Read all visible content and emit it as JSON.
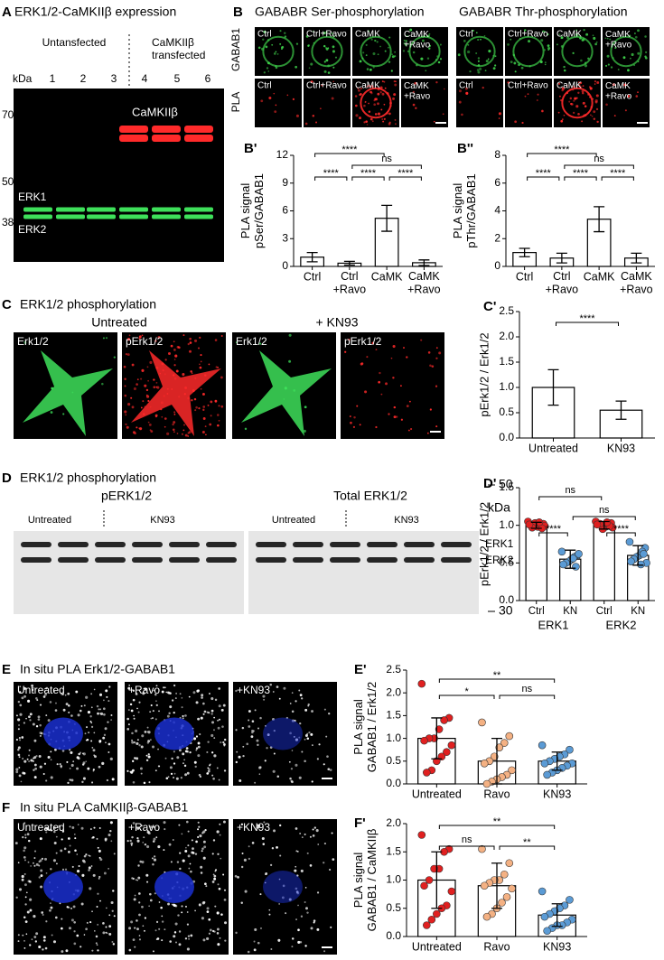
{
  "panels": {
    "A": {
      "letter": "A",
      "title": "ERK1/2-CaMKIIβ expression",
      "group1": "Untansfected",
      "group2": "CaMKIIβ\ntransfected",
      "kda": "kDa",
      "lanes": [
        "1",
        "2",
        "3",
        "4",
        "5",
        "6"
      ],
      "markers": [
        "70",
        "50",
        "38"
      ],
      "band_labels": [
        "CaMKIIβ",
        "ERK1",
        "ERK2"
      ]
    },
    "B": {
      "letter": "B",
      "title_ser": "GABABR Ser-phosphorylation",
      "title_thr": "GABABR Thr-phosphorylation",
      "row_labels": [
        "GABAB1",
        "PLA"
      ],
      "tiles": [
        "Ctrl",
        "Ctrl+Ravo",
        "CaMK",
        "CaMK\n+Ravo"
      ]
    },
    "C": {
      "letter": "C",
      "title": "ERK1/2 phosphorylation",
      "untreated": "Untreated",
      "kn93": "+ KN93",
      "tiles": [
        "Erk1/2",
        "pErk1/2"
      ]
    },
    "D": {
      "letter": "D",
      "title": "ERK1/2 phosphorylation",
      "blot_left": "pERK1/2",
      "blot_right": "Total ERK1/2",
      "untreated": "Untreated",
      "kn93": "KN93",
      "kda": "kDa",
      "markers": [
        "50",
        "30"
      ],
      "band_labels": [
        "ERK1",
        "ERK2"
      ]
    },
    "E": {
      "letter": "E",
      "title": "In situ PLA Erk1/2-GABAB1",
      "tiles": [
        "Untreated",
        "+Ravo",
        "+KN93"
      ]
    },
    "F": {
      "letter": "F",
      "title": "In situ PLA CaMKIIβ-GABAB1",
      "tiles": [
        "Untreated",
        "+Ravo",
        "+KN93"
      ]
    }
  },
  "chart_data": [
    {
      "type": "bar",
      "panel": "B'",
      "ylabel": "PLA signal\npSer/GABAB1",
      "categories": [
        "Ctrl",
        "Ctrl\n+Ravo",
        "CaMK",
        "CaMK\n+Ravo"
      ],
      "values": [
        1.0,
        0.35,
        5.2,
        0.4
      ],
      "errors": [
        0.5,
        0.2,
        1.4,
        0.3
      ],
      "point_colors": [
        "#7f7f7f",
        "#f4b183",
        "#e03030",
        "#5b9bd5"
      ],
      "ylim": [
        0,
        12
      ],
      "yticks": [
        0,
        3,
        6,
        9,
        12
      ],
      "brackets": [
        "****",
        "ns",
        "****",
        "****",
        "****"
      ]
    },
    {
      "type": "bar",
      "panel": "B''",
      "ylabel": "PLA signal\npThr/GABAB1",
      "categories": [
        "Ctrl",
        "Ctrl\n+Ravo",
        "CaMK",
        "CaMK\n+Ravo"
      ],
      "values": [
        1.0,
        0.6,
        3.4,
        0.6
      ],
      "errors": [
        0.3,
        0.35,
        0.9,
        0.35
      ],
      "point_colors": [
        "#7f7f7f",
        "#f4b183",
        "#e03030",
        "#5b9bd5"
      ],
      "ylim": [
        0,
        8
      ],
      "yticks": [
        0,
        2,
        4,
        6,
        8
      ],
      "brackets": [
        "****",
        "ns",
        "****",
        "****",
        "****"
      ]
    },
    {
      "type": "bar",
      "panel": "C'",
      "ylabel": "pErk1/2 / Erk1/2",
      "categories": [
        "Untreated",
        "KN93"
      ],
      "values": [
        1.0,
        0.55
      ],
      "errors": [
        0.35,
        0.18
      ],
      "point_colors": [
        "#e02020",
        "#5b9bd5"
      ],
      "ylim": [
        0,
        2.5
      ],
      "yticks": [
        {
          "value": 0,
          "label": "0.0"
        },
        0.5,
        {
          "value": 1,
          "label": "1.0"
        },
        1.5,
        {
          "value": 2,
          "label": "2.0"
        },
        2.5
      ],
      "brackets": [
        "****"
      ]
    },
    {
      "type": "bar",
      "panel": "D'",
      "ylabel": "pErk1/2 / Erk1/2",
      "categories": [
        "Ctrl",
        "KN",
        "Ctrl",
        "KN"
      ],
      "groups": [
        "ERK1",
        "ERK2"
      ],
      "values": [
        1.0,
        0.55,
        1.0,
        0.6
      ],
      "errors": [
        0.04,
        0.12,
        0.05,
        0.13
      ],
      "point_colors": [
        "#e02020",
        "#5b9bd5",
        "#e02020",
        "#5b9bd5"
      ],
      "points": [
        [
          1.05,
          1.02,
          1.0,
          0.98,
          1.03,
          0.97,
          1.01,
          0.99,
          0.96,
          1.04
        ],
        [
          0.65,
          0.6,
          0.58,
          0.55,
          0.52,
          0.5,
          0.48,
          0.62,
          0.45,
          0.56
        ],
        [
          1.05,
          1.03,
          1.0,
          0.98,
          0.95,
          1.02,
          1.01,
          0.97,
          0.99,
          1.04
        ],
        [
          0.78,
          0.7,
          0.65,
          0.6,
          0.58,
          0.55,
          0.52,
          0.5,
          0.62,
          0.48
        ]
      ],
      "ylim": [
        0,
        1.5
      ],
      "yticks": [
        {
          "value": 0,
          "label": "0.0"
        },
        0.5,
        {
          "value": 1,
          "label": "1.0"
        },
        1.5
      ],
      "brackets": [
        "ns",
        "ns",
        "****",
        "****"
      ]
    },
    {
      "type": "bar",
      "panel": "E'",
      "ylabel": "PLA signal\nGABAB1 / Erk1/2",
      "categories": [
        "Untreated",
        "Ravo",
        "KN93"
      ],
      "values": [
        1.0,
        0.5,
        0.5
      ],
      "errors": [
        0.45,
        0.5,
        0.2
      ],
      "point_colors": [
        "#e02020",
        "#f4b183",
        "#5b9bd5"
      ],
      "points": [
        [
          2.2,
          1.45,
          1.4,
          1.2,
          1.0,
          1.0,
          0.95,
          0.85,
          0.7,
          0.6,
          0.5,
          0.3,
          0.25
        ],
        [
          1.35,
          1.05,
          0.9,
          0.8,
          0.6,
          0.5,
          0.45,
          0.3,
          0.2,
          0.15,
          0.1,
          0.05,
          0.0
        ],
        [
          0.85,
          0.75,
          0.65,
          0.6,
          0.55,
          0.5,
          0.45,
          0.45,
          0.4,
          0.35,
          0.3,
          0.25,
          0.2
        ]
      ],
      "ylim": [
        0,
        2.5
      ],
      "yticks": [
        {
          "value": 0,
          "label": "0.0"
        },
        0.5,
        {
          "value": 1,
          "label": "1.0"
        },
        1.5,
        {
          "value": 2,
          "label": "2.0"
        },
        2.5
      ],
      "brackets": [
        "**",
        "*",
        "ns"
      ]
    },
    {
      "type": "bar",
      "panel": "F'",
      "ylabel": "PLA signal\nGABAB1 / CaMKIIβ",
      "categories": [
        "Untreated",
        "Ravo",
        "KN93"
      ],
      "values": [
        1.0,
        0.9,
        0.38
      ],
      "errors": [
        0.5,
        0.4,
        0.2
      ],
      "point_colors": [
        "#e02020",
        "#f4b183",
        "#5b9bd5"
      ],
      "points": [
        [
          1.8,
          1.55,
          1.5,
          1.2,
          1.2,
          1.0,
          0.9,
          0.8,
          0.55,
          0.5,
          0.4,
          0.3,
          0.2
        ],
        [
          1.55,
          1.3,
          1.1,
          1.0,
          1.0,
          0.95,
          0.9,
          0.85,
          0.7,
          0.6,
          0.5,
          0.4,
          0.35
        ],
        [
          0.8,
          0.65,
          0.55,
          0.5,
          0.45,
          0.4,
          0.35,
          0.3,
          0.25,
          0.2,
          0.2,
          0.15,
          0.1
        ]
      ],
      "ylim": [
        0,
        2.0
      ],
      "yticks": [
        {
          "value": 0,
          "label": "0.0"
        },
        0.5,
        {
          "value": 1,
          "label": "1.0"
        },
        1.5,
        {
          "value": 2,
          "label": "2.0"
        }
      ],
      "brackets": [
        "**",
        "ns",
        "**"
      ]
    }
  ]
}
